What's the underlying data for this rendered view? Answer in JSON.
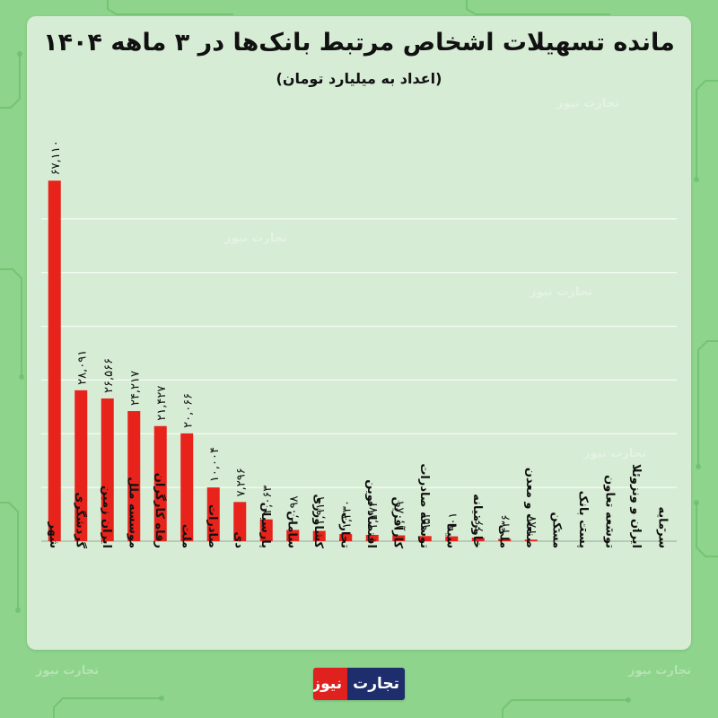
{
  "title": "مانده تسهیلات اشخاص مرتبط بانک‌ها در ۳ ماهه ۱۴۰۴",
  "subtitle": "(اعداد به میلیارد تومان)",
  "watermark_text": "تجارت نیوز",
  "logo": {
    "part1": "تجارت",
    "part2": "نیوز"
  },
  "colors": {
    "bar": "#e8231b",
    "background": "#8ed48c",
    "card": "#d6ecd4",
    "grid": "#ffffff"
  },
  "chart_data": {
    "type": "bar",
    "categories": [
      "شهر",
      "گردشگری",
      "ایران زمین",
      "موسسه ملل",
      "رفاه کارگران",
      "ملت",
      "صادرات",
      "دی",
      "پارسیان",
      "سامان",
      "کشاورزی",
      "تجارت",
      "اقتصاد نوین",
      "کارآفرین",
      "توسعه صادرات",
      "سینا",
      "خاورمیانه",
      "ملی",
      "صنعت و معدن",
      "مسکن",
      "پست بانک",
      "توسعه تعاون",
      "ایران و ونزوئلا",
      "سرمایه"
    ],
    "values": [
      67110,
      28091,
      26566,
      24217,
      21427,
      20066,
      10004,
      7296,
      4063,
      2098,
      1919,
      1330,
      1172,
      1089,
      952,
      901,
      660,
      436,
      287,
      0,
      0,
      0,
      0,
      0
    ],
    "value_labels": [
      "۶۷,۱۱۰",
      "۲۸,۰۹۱",
      "۲۶,۵۶۶",
      "۲۴,۲۱۷",
      "۲۱,۴۲۷",
      "۲۰,۰۶۶",
      "۱۰,۰۰۴",
      "۷,۲۹۶",
      "۴,۰۶۳",
      "۲,۰۹۸",
      "۱,۹۱۹",
      "۱,۳۳۰",
      "۱,۱۷۲",
      "۱,۰۸۹",
      "۹۵۲",
      "۹۰۱",
      "۶۶۰",
      "۴۳۶",
      "۲۸۷",
      "-",
      "-",
      "-",
      "-",
      "-"
    ],
    "ylim": [
      0,
      70000
    ],
    "grid": true,
    "legend": "none"
  }
}
